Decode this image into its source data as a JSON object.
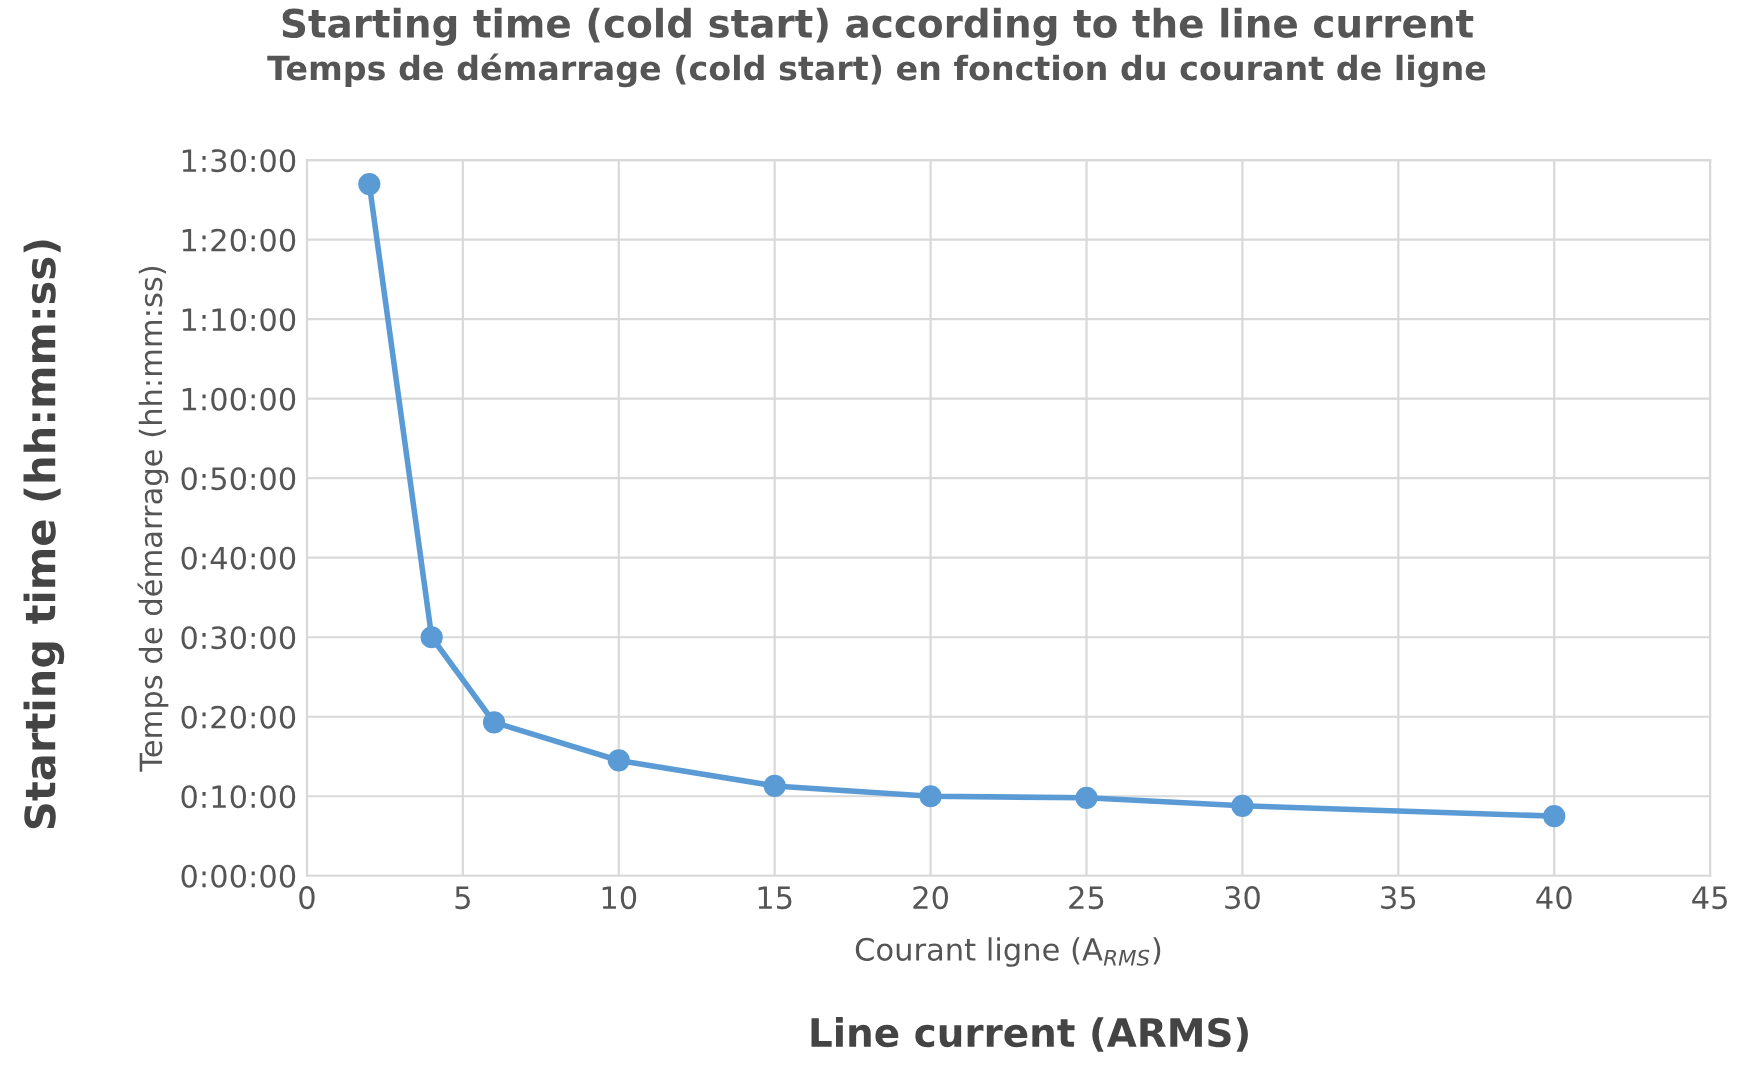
{
  "chart_data": {
    "type": "line",
    "title": "Starting time (cold start) according to the line current",
    "subtitle": "Temps de démarrage (cold start) en fonction du courant de ligne",
    "xlabel": "Courant ligne (A$_{RMS}$)",
    "ylabel": "Temps de démarrage (hh:mm:ss)",
    "annotations": [
      "Starting time (hh:mm:ss)",
      "Line current (ARMS)"
    ],
    "x": [
      2,
      4,
      6,
      10,
      15,
      20,
      25,
      30,
      40
    ],
    "series": [
      {
        "color": "#5b9bd5",
        "values": [
          87,
          30,
          19.3,
          14.5,
          11.3,
          10,
          9.8,
          8.8,
          7.5
        ]
      }
    ],
    "xlim": [
      0,
      45
    ],
    "xticks": [
      0,
      5,
      10,
      15,
      20,
      25,
      30,
      35,
      40,
      45
    ],
    "ylim": [
      0,
      90
    ],
    "yticks": [
      {
        "value": 0,
        "label": "0:00:00"
      },
      {
        "value": 10,
        "label": "0:10:00"
      },
      {
        "value": 20,
        "label": "0:20:00"
      },
      {
        "value": 30,
        "label": "0:30:00"
      },
      {
        "value": 40,
        "label": "0:40:00"
      },
      {
        "value": 50,
        "label": "0:50:00"
      },
      {
        "value": 60,
        "label": "1:00:00"
      },
      {
        "value": 70,
        "label": "1:10:00"
      },
      {
        "value": 80,
        "label": "1:20:00"
      },
      {
        "value": 90,
        "label": "1:30:00"
      }
    ],
    "grid": true,
    "marker": "circle",
    "line_style": "solid"
  }
}
